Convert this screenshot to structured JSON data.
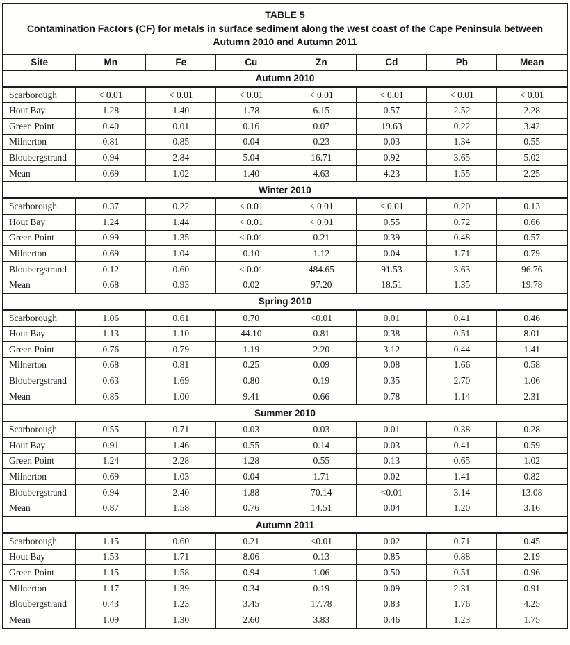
{
  "table": {
    "label": "TABLE 5",
    "title_lines": [
      "Contamination Factors (CF) for metals in surface sediment along the west coast of the Cape Peninsula between",
      "Autumn 2010 and Autumn 2011"
    ],
    "columns": [
      "Site",
      "Mn",
      "Fe",
      "Cu",
      "Zn",
      "Cd",
      "Pb",
      "Mean"
    ],
    "sections": [
      {
        "season": "Autumn 2010",
        "rows": [
          {
            "site": "Scarborough",
            "values": [
              "< 0.01",
              "< 0.01",
              "< 0.01",
              "< 0.01",
              "< 0.01",
              "< 0.01",
              "< 0.01"
            ]
          },
          {
            "site": "Hout Bay",
            "values": [
              "1.28",
              "1.40",
              "1.78",
              "6.15",
              "0.57",
              "2.52",
              "2.28"
            ]
          },
          {
            "site": "Green Point",
            "values": [
              "0.40",
              "0.01",
              "0.16",
              "0.07",
              "19.63",
              "0.22",
              "3.42"
            ]
          },
          {
            "site": "Milnerton",
            "values": [
              "0.81",
              "0.85",
              "0.04",
              "0.23",
              "0.03",
              "1.34",
              "0.55"
            ]
          },
          {
            "site": "Bloubergstrand",
            "values": [
              "0.94",
              "2.84",
              "5.04",
              "16.71",
              "0.92",
              "3.65",
              "5.02"
            ]
          },
          {
            "site": "Mean",
            "values": [
              "0.69",
              "1.02",
              "1.40",
              "4.63",
              "4.23",
              "1.55",
              "2.25"
            ]
          }
        ]
      },
      {
        "season": "Winter 2010",
        "rows": [
          {
            "site": "Scarborough",
            "values": [
              "0.37",
              "0.22",
              "< 0.01",
              "< 0.01",
              "< 0.01",
              "0.20",
              "0.13"
            ]
          },
          {
            "site": "Hout Bay",
            "values": [
              "1.24",
              "1.44",
              "< 0.01",
              "< 0.01",
              "0.55",
              "0.72",
              "0.66"
            ]
          },
          {
            "site": "Green Point",
            "values": [
              "0.99",
              "1.35",
              "< 0.01",
              "0.21",
              "0.39",
              "0.48",
              "0.57"
            ]
          },
          {
            "site": "Milnerton",
            "values": [
              "0.69",
              "1.04",
              "0.10",
              "1.12",
              "0.04",
              "1.71",
              "0.79"
            ]
          },
          {
            "site": "Bloubergstrand",
            "values": [
              "0.12",
              "0.60",
              "< 0.01",
              "484.65",
              "91.53",
              "3.63",
              "96.76"
            ]
          },
          {
            "site": "Mean",
            "values": [
              "0.68",
              "0.93",
              "0.02",
              "97.20",
              "18.51",
              "1.35",
              "19.78"
            ]
          }
        ]
      },
      {
        "season": "Spring 2010",
        "rows": [
          {
            "site": "Scarborough",
            "values": [
              "1.06",
              "0.61",
              "0.70",
              "<0.01",
              "0.01",
              "0.41",
              "0.46"
            ]
          },
          {
            "site": "Hout Bay",
            "values": [
              "1.13",
              "1.10",
              "44.10",
              "0.81",
              "0.38",
              "0.51",
              "8.01"
            ]
          },
          {
            "site": "Green Point",
            "values": [
              "0.76",
              "0.79",
              "1.19",
              "2.20",
              "3.12",
              "0.44",
              "1.41"
            ]
          },
          {
            "site": "Milnerton",
            "values": [
              "0.68",
              "0.81",
              "0.25",
              "0.09",
              "0.08",
              "1.66",
              "0.58"
            ]
          },
          {
            "site": "Bloubergstrand",
            "values": [
              "0.63",
              "1.69",
              "0.80",
              "0.19",
              "0.35",
              "2.70",
              "1.06"
            ]
          },
          {
            "site": "Mean",
            "values": [
              "0.85",
              "1.00",
              "9.41",
              "0.66",
              "0.78",
              "1.14",
              "2.31"
            ]
          }
        ]
      },
      {
        "season": "Summer 2010",
        "rows": [
          {
            "site": "Scarborough",
            "values": [
              "0.55",
              "0.71",
              "0.03",
              "0.03",
              "0.01",
              "0.38",
              "0.28"
            ]
          },
          {
            "site": "Hout Bay",
            "values": [
              "0.91",
              "1.46",
              "0.55",
              "0.14",
              "0.03",
              "0.41",
              "0.59"
            ]
          },
          {
            "site": "Green Point",
            "values": [
              "1.24",
              "2.28",
              "1.28",
              "0.55",
              "0.13",
              "0.65",
              "1.02"
            ]
          },
          {
            "site": "Milnerton",
            "values": [
              "0.69",
              "1.03",
              "0.04",
              "1.71",
              "0.02",
              "1.41",
              "0.82"
            ]
          },
          {
            "site": "Bloubergstrand",
            "values": [
              "0.94",
              "2.40",
              "1.88",
              "70.14",
              "<0.01",
              "3.14",
              "13.08"
            ]
          },
          {
            "site": "Mean",
            "values": [
              "0.87",
              "1.58",
              "0.76",
              "14.51",
              "0.04",
              "1.20",
              "3.16"
            ]
          }
        ]
      },
      {
        "season": "Autumn 2011",
        "rows": [
          {
            "site": "Scarborough",
            "values": [
              "1.15",
              "0.60",
              "0.21",
              "<0.01",
              "0.02",
              "0.71",
              "0.45"
            ]
          },
          {
            "site": "Hout Bay",
            "values": [
              "1.53",
              "1.71",
              "8.06",
              "0.13",
              "0.85",
              "0.88",
              "2.19"
            ]
          },
          {
            "site": "Green Point",
            "values": [
              "1.15",
              "1.58",
              "0.94",
              "1.06",
              "0.50",
              "0.51",
              "0.96"
            ]
          },
          {
            "site": "Milnerton",
            "values": [
              "1.17",
              "1.39",
              "0.34",
              "0.19",
              "0.09",
              "2.31",
              "0.91"
            ]
          },
          {
            "site": "Bloubergstrand",
            "values": [
              "0.43",
              "1.23",
              "3.45",
              "17.78",
              "0.83",
              "1.76",
              "4.25"
            ]
          },
          {
            "site": "Mean",
            "values": [
              "1.09",
              "1.30",
              "2.60",
              "3.83",
              "0.46",
              "1.23",
              "1.75"
            ]
          }
        ]
      }
    ]
  }
}
